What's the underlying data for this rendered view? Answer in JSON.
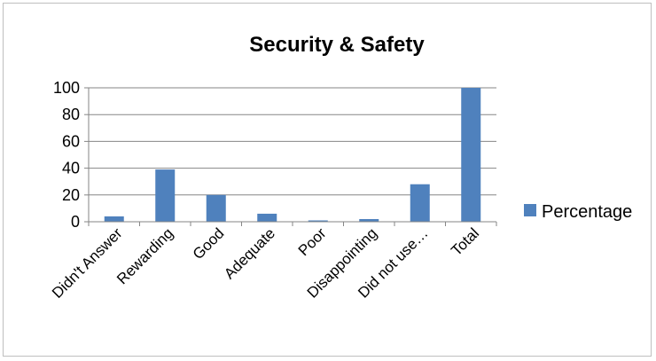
{
  "chart_data": {
    "type": "bar",
    "title": "Security & Safety",
    "categories": [
      "Didn't Answer",
      "Rewarding",
      "Good",
      "Adequate",
      "Poor",
      "Disappointing",
      "Did not use…",
      "Total"
    ],
    "series": [
      {
        "name": "Percentage",
        "values": [
          4,
          39,
          20,
          6,
          1,
          2,
          28,
          100
        ],
        "color": "#4F81BD"
      }
    ],
    "yticks": [
      "0",
      "20",
      "40",
      "60",
      "80",
      "100"
    ],
    "ylim": [
      0,
      100
    ],
    "grid": true,
    "gridline_color": "#868686",
    "legend_position": "right"
  }
}
